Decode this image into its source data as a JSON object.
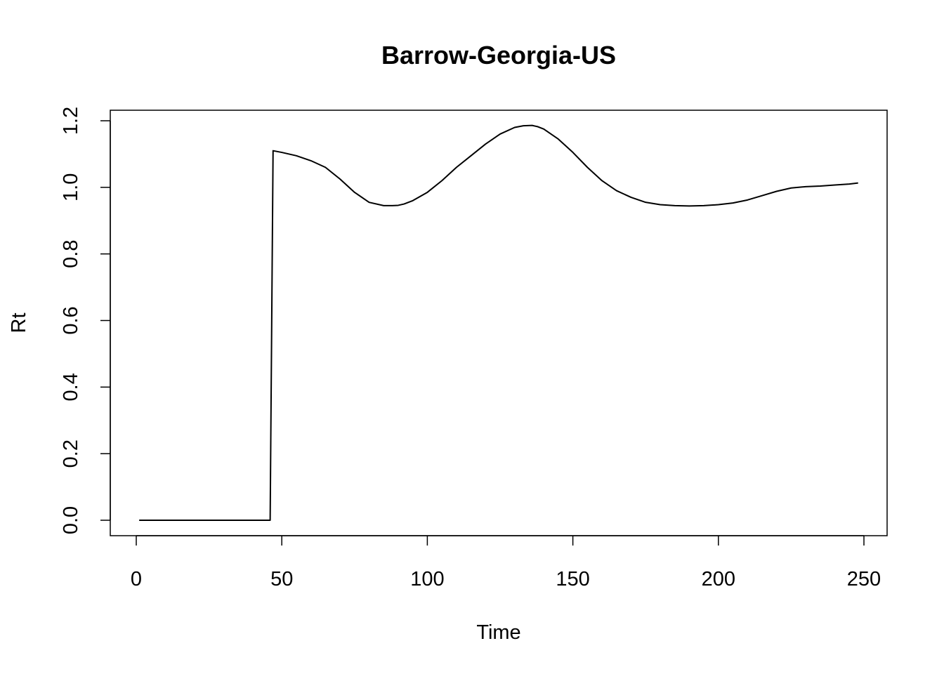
{
  "chart_data": {
    "type": "line",
    "title": "Barrow-Georgia-US",
    "xlabel": "Time",
    "ylabel": "Rt",
    "xlim": [
      0,
      250
    ],
    "ylim": [
      0.0,
      1.2
    ],
    "x_ticks": [
      "0",
      "50",
      "100",
      "150",
      "200",
      "250"
    ],
    "y_ticks": [
      "0.0",
      "0.2",
      "0.4",
      "0.6",
      "0.8",
      "1.0",
      "1.2"
    ],
    "grid": false,
    "series": [
      {
        "color": "#000000",
        "x": [
          1,
          10,
          20,
          30,
          40,
          45,
          46,
          47,
          50,
          55,
          60,
          65,
          70,
          75,
          80,
          85,
          88,
          90,
          92,
          95,
          100,
          105,
          110,
          115,
          120,
          125,
          130,
          133,
          136,
          138,
          140,
          145,
          150,
          155,
          160,
          165,
          170,
          175,
          180,
          185,
          190,
          195,
          200,
          205,
          210,
          215,
          220,
          225,
          230,
          235,
          240,
          245,
          248
        ],
        "y": [
          0.0,
          0.0,
          0.0,
          0.0,
          0.0,
          0.0,
          0.0,
          1.11,
          1.105,
          1.095,
          1.08,
          1.06,
          1.025,
          0.985,
          0.955,
          0.945,
          0.945,
          0.946,
          0.95,
          0.96,
          0.985,
          1.02,
          1.06,
          1.095,
          1.13,
          1.16,
          1.18,
          1.185,
          1.186,
          1.182,
          1.175,
          1.145,
          1.105,
          1.06,
          1.02,
          0.99,
          0.97,
          0.955,
          0.948,
          0.945,
          0.944,
          0.945,
          0.948,
          0.953,
          0.962,
          0.975,
          0.988,
          0.998,
          1.002,
          1.004,
          1.007,
          1.01,
          1.013
        ]
      }
    ]
  }
}
